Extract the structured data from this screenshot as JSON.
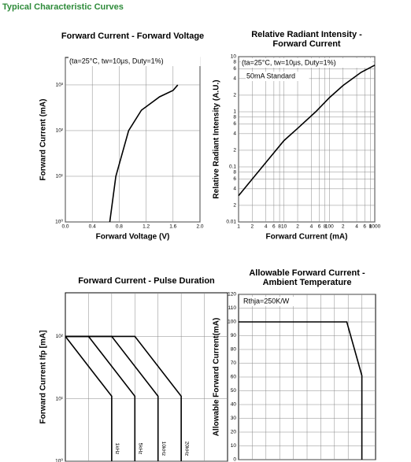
{
  "header": {
    "title": "Typical Characteristic Curves"
  },
  "chart_data": [
    {
      "type": "line",
      "title": [
        "Forward Current - Forward Voltage"
      ],
      "x_label": "Forward Voltage (V)",
      "y_label": "Forward Current (mA)",
      "annotations": [
        "(ta=25°C, tw=10µs, Duty=1%)"
      ],
      "yscale": "log",
      "grid": true,
      "xlim": [
        0,
        2
      ],
      "ylim": [
        1,
        4000
      ],
      "xticks": [
        {
          "value": 0,
          "label": "0.0"
        },
        0.4,
        0.8,
        1.2,
        1.6,
        {
          "value": 2,
          "label": "2.0"
        }
      ],
      "yticks": [
        {
          "value": 1,
          "label": "10⁰"
        },
        {
          "value": 10,
          "label": "10¹"
        },
        {
          "value": 100,
          "label": "10²"
        },
        {
          "value": 1000,
          "label": "10³"
        }
      ],
      "series": [
        {
          "color": "#000000",
          "x": [
            0.66,
            0.75,
            0.94,
            1.13,
            1.4,
            1.6,
            1.67
          ],
          "values": [
            1,
            10,
            100,
            280,
            550,
            760,
            1000
          ]
        }
      ]
    },
    {
      "type": "line",
      "title": [
        "Relative Radiant Intensity -",
        "Forward Current"
      ],
      "x_label": "Forward Current (mA)",
      "y_label": "Relative Radiant Intensity (A.U.)",
      "annotations": [
        "(ta=25°C, tw=10µs, Duty=1%)",
        "50mA Standard"
      ],
      "xscale": "log",
      "yscale": "log",
      "grid": true,
      "xlim": [
        1,
        1000
      ],
      "ylim": [
        0.01,
        10
      ],
      "xticks": [
        1,
        2,
        4,
        6,
        8,
        10,
        {
          "value": 20,
          "label": "2"
        },
        {
          "value": 40,
          "label": "4"
        },
        {
          "value": 60,
          "label": "6"
        },
        {
          "value": 80,
          "label": "8"
        },
        100,
        {
          "value": 200,
          "label": "2"
        },
        {
          "value": 400,
          "label": "4"
        },
        {
          "value": 600,
          "label": "6"
        },
        {
          "value": 800,
          "label": "8"
        },
        1000
      ],
      "yticks": [
        0.01,
        {
          "value": 0.02,
          "label": "2"
        },
        {
          "value": 0.04,
          "label": "4"
        },
        {
          "value": 0.06,
          "label": "6"
        },
        {
          "value": 0.08,
          "label": "8"
        },
        0.1,
        {
          "value": 0.2,
          "label": "2"
        },
        {
          "value": 0.4,
          "label": "4"
        },
        {
          "value": 0.6,
          "label": "6"
        },
        {
          "value": 0.8,
          "label": "8"
        },
        1,
        2,
        4,
        6,
        8,
        10
      ],
      "series": [
        {
          "color": "#000000",
          "x": [
            1,
            2,
            5,
            10,
            20,
            50,
            100,
            200,
            500,
            1000
          ],
          "values": [
            0.03,
            0.06,
            0.15,
            0.3,
            0.5,
            1,
            1.8,
            3,
            5.2,
            7
          ]
        }
      ]
    },
    {
      "type": "line",
      "title": [
        "Forward Current - Pulse Duration"
      ],
      "y_label": "Forward Current Ifp [mA]",
      "yscale": "log",
      "grid": true,
      "xlim": [
        0,
        7
      ],
      "ylim": [
        1,
        500
      ],
      "yticks": [
        {
          "value": 1,
          "label": "10⁰"
        },
        {
          "value": 10,
          "label": "10¹"
        },
        {
          "value": 100,
          "label": "10²"
        }
      ],
      "series": [
        {
          "name": "1kHz",
          "color": "#000000",
          "x": [
            0,
            2,
            2
          ],
          "values": [
            100,
            11,
            1
          ]
        },
        {
          "name": "5kHz",
          "color": "#000000",
          "x": [
            0,
            1,
            3,
            3
          ],
          "values": [
            100,
            100,
            11,
            1
          ]
        },
        {
          "name": "10kHz",
          "color": "#000000",
          "x": [
            0,
            2,
            4,
            4
          ],
          "values": [
            100,
            100,
            11,
            1
          ]
        },
        {
          "name": "20kHz",
          "color": "#000000",
          "x": [
            0,
            3,
            5,
            5
          ],
          "values": [
            100,
            100,
            11,
            1
          ]
        }
      ]
    },
    {
      "type": "line",
      "title": [
        "Allowable Forward Current -",
        "Ambient Temperature"
      ],
      "y_label": "Allowable Forward Current(mA)",
      "annotations": [
        "Rthja=250K/W"
      ],
      "grid": true,
      "xlim": [
        0,
        10
      ],
      "ylim": [
        0,
        120
      ],
      "yticks": [
        0,
        10,
        20,
        30,
        40,
        50,
        60,
        70,
        80,
        90,
        100,
        110,
        120
      ],
      "series": [
        {
          "color": "#000000",
          "x": [
            0,
            7.9,
            9,
            9
          ],
          "values": [
            100,
            100,
            61,
            0
          ]
        }
      ]
    }
  ]
}
